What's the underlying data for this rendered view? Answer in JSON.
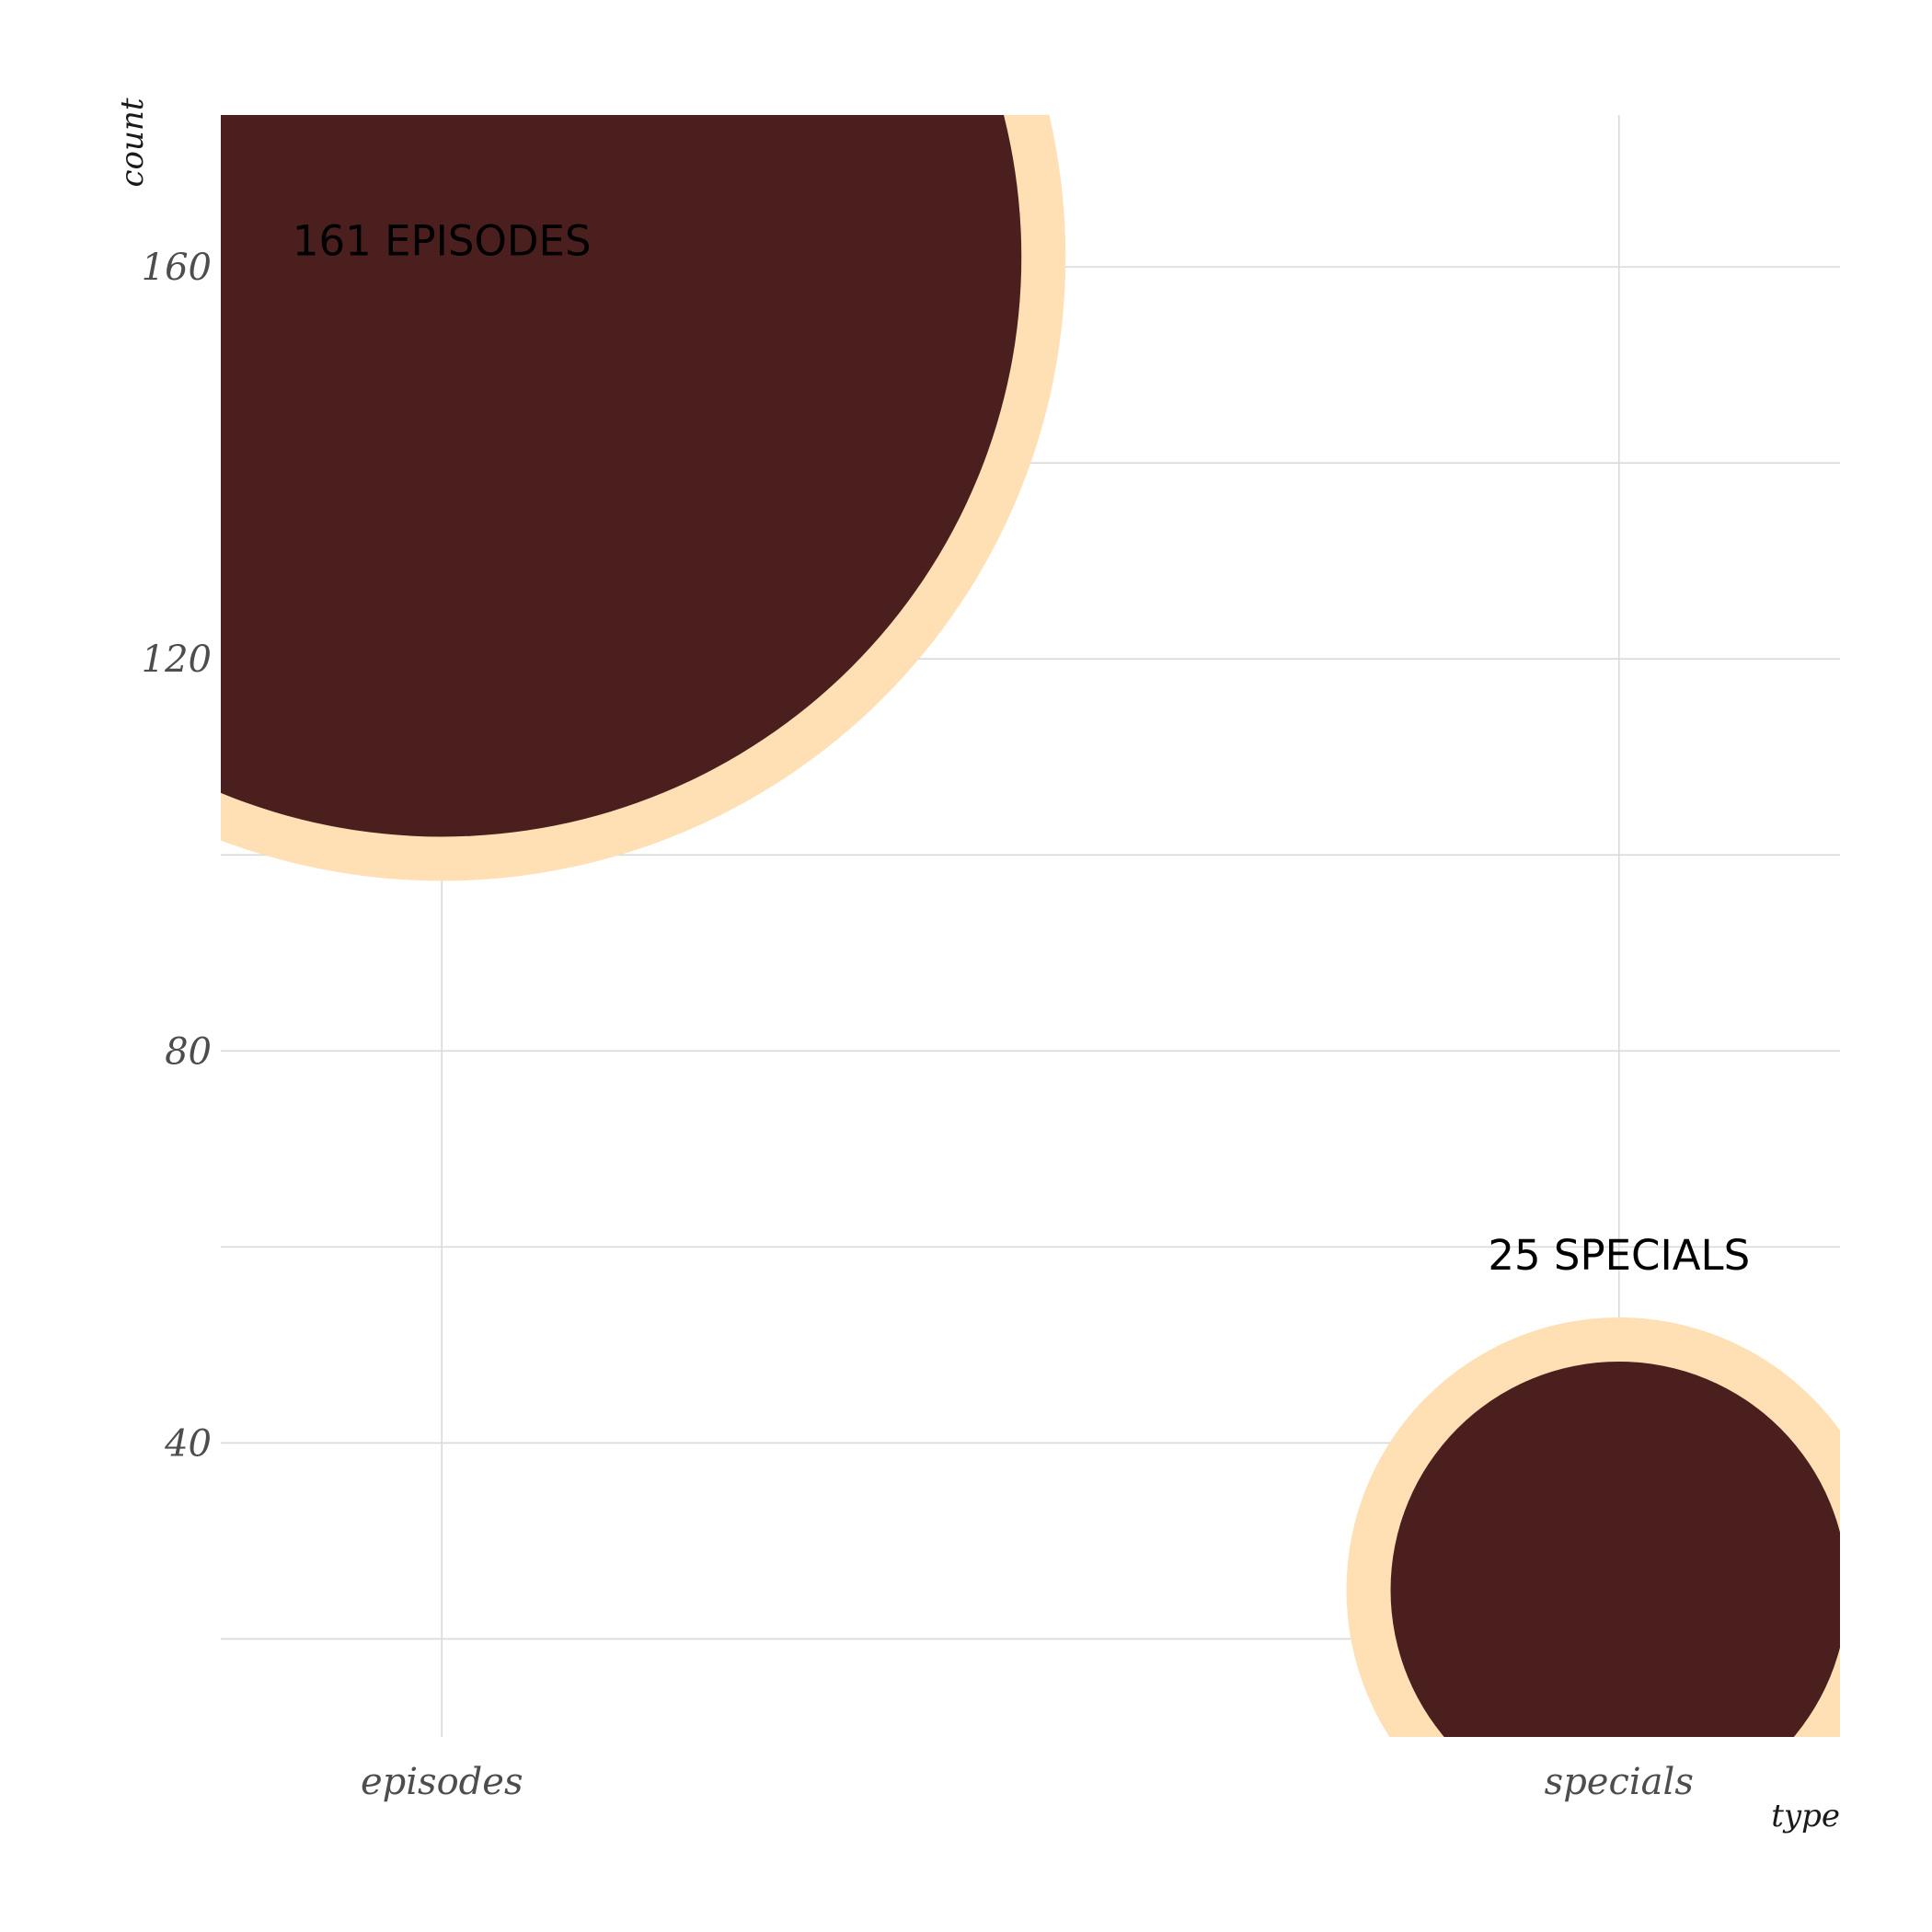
{
  "chart_data": {
    "type": "scatter",
    "categories": [
      "episodes",
      "specials"
    ],
    "values": [
      161,
      25
    ],
    "data_labels": [
      "161 EPISODES",
      "25 SPECIALS"
    ],
    "title": "",
    "xlabel": "type",
    "ylabel": "count",
    "yticks": [
      40,
      80,
      120,
      160
    ],
    "ylim": [
      10,
      175.5
    ],
    "grid": true,
    "colors": {
      "fill": "#4a1f1e",
      "outline": "#ffe0b5",
      "grid": "#d9d9d9",
      "tick_text": "#4d4d4d"
    }
  }
}
